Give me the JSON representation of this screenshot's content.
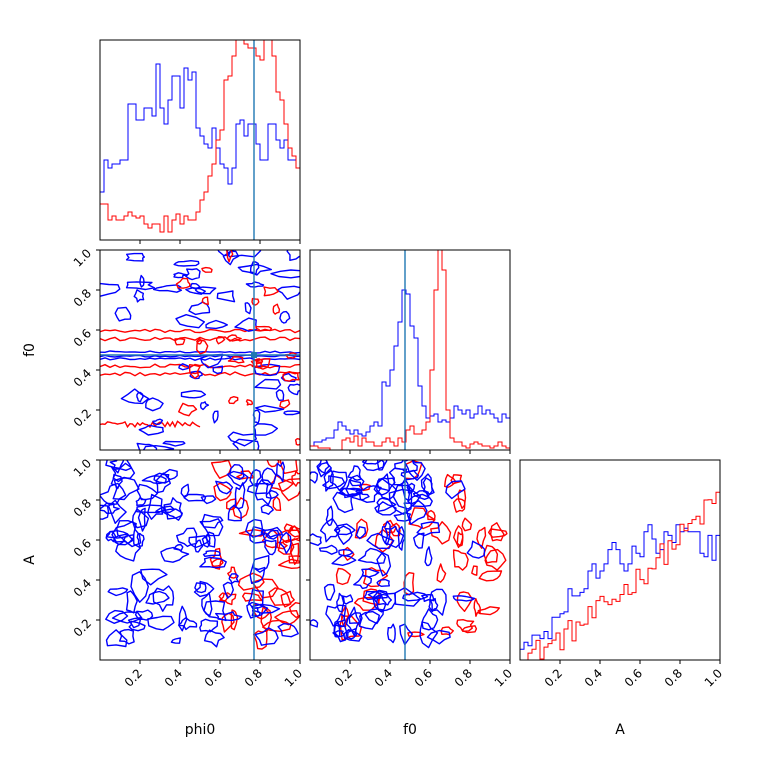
{
  "chart_data": {
    "type": "corner",
    "parameters": [
      "phi0",
      "f0",
      "A"
    ],
    "axis_labels": {
      "x": [
        "phi0",
        "f0",
        "A"
      ],
      "y": [
        "f0",
        "A"
      ]
    },
    "range": [
      0,
      1
    ],
    "ticks": [
      0.2,
      0.4,
      0.6,
      0.8,
      1.0
    ],
    "tick_labels": [
      "0.2",
      "0.4",
      "0.6",
      "0.8",
      "1.0"
    ],
    "truth": {
      "phi0": 0.77,
      "f0": 0.475
    },
    "colors": {
      "blue": "#0000ff",
      "red": "#ff0000",
      "truth": "#1f77b4"
    },
    "histograms": {
      "phi0": {
        "blue": [
          0.24,
          0.4,
          0.36,
          0.38,
          0.38,
          0.4,
          0.4,
          0.68,
          0.68,
          0.6,
          0.6,
          0.66,
          0.66,
          0.62,
          0.88,
          0.66,
          0.58,
          0.7,
          0.82,
          0.82,
          0.66,
          0.86,
          0.8,
          0.84,
          0.56,
          0.52,
          0.48,
          0.46,
          0.56,
          0.46,
          0.38,
          0.36,
          0.28,
          0.36,
          0.58,
          0.6,
          0.52,
          0.58,
          0.58,
          0.48,
          0.4,
          0.4,
          0.58,
          0.58,
          0.5,
          0.46,
          0.5,
          0.4,
          0.4,
          0.36
        ],
        "red": [
          0.18,
          0.18,
          0.1,
          0.12,
          0.1,
          0.1,
          0.12,
          0.14,
          0.12,
          0.11,
          0.12,
          0.08,
          0.06,
          0.08,
          0.08,
          0.04,
          0.12,
          0.04,
          0.1,
          0.13,
          0.08,
          0.12,
          0.1,
          0.1,
          0.14,
          0.2,
          0.24,
          0.32,
          0.38,
          0.5,
          0.55,
          0.8,
          0.82,
          0.92,
          1.0,
          1.0,
          0.98,
          0.96,
          0.96,
          0.92,
          0.9,
          1.0,
          1.0,
          0.92,
          0.74,
          0.7,
          0.58,
          0.46,
          0.42,
          0.36
        ]
      },
      "f0": {
        "blue": [
          0.02,
          0.04,
          0.04,
          0.05,
          0.06,
          0.06,
          0.1,
          0.14,
          0.12,
          0.1,
          0.08,
          0.1,
          0.08,
          0.07,
          0.09,
          0.12,
          0.14,
          0.12,
          0.34,
          0.32,
          0.4,
          0.52,
          0.64,
          0.8,
          0.78,
          0.62,
          0.56,
          0.32,
          0.22,
          0.16,
          0.17,
          0.18,
          0.14,
          0.15,
          0.14,
          0.16,
          0.22,
          0.2,
          0.18,
          0.2,
          0.16,
          0.18,
          0.22,
          0.18,
          0.2,
          0.18,
          0.16,
          0.14,
          0.18,
          0.16
        ],
        "red": [
          0.02,
          0.02,
          0.01,
          0.01,
          0.01,
          0.0,
          0.0,
          0.0,
          0.05,
          0.06,
          0.04,
          0.07,
          0.02,
          0.06,
          0.04,
          0.04,
          0.02,
          0.02,
          0.04,
          0.06,
          0.04,
          0.02,
          0.06,
          0.04,
          0.1,
          0.12,
          0.08,
          0.08,
          0.1,
          0.14,
          0.4,
          0.8,
          1.0,
          0.9,
          0.2,
          0.06,
          0.04,
          0.04,
          0.02,
          0.01,
          0.03,
          0.04,
          0.03,
          0.02,
          0.02,
          0.01,
          0.02,
          0.04,
          0.02,
          0.01
        ]
      },
      "A": {
        "blue": [
          0.06,
          0.1,
          0.08,
          0.14,
          0.14,
          0.12,
          0.16,
          0.12,
          0.24,
          0.24,
          0.26,
          0.27,
          0.4,
          0.36,
          0.36,
          0.38,
          0.4,
          0.5,
          0.54,
          0.46,
          0.5,
          0.54,
          0.62,
          0.66,
          0.62,
          0.54,
          0.5,
          0.54,
          0.64,
          0.6,
          0.58,
          0.72,
          0.76,
          0.68,
          0.6,
          0.62,
          0.72,
          0.7,
          0.66,
          0.76,
          0.72,
          0.74,
          0.72,
          0.72,
          0.72,
          0.6,
          0.58,
          0.7,
          0.56,
          0.7
        ]
      }
    }
  }
}
